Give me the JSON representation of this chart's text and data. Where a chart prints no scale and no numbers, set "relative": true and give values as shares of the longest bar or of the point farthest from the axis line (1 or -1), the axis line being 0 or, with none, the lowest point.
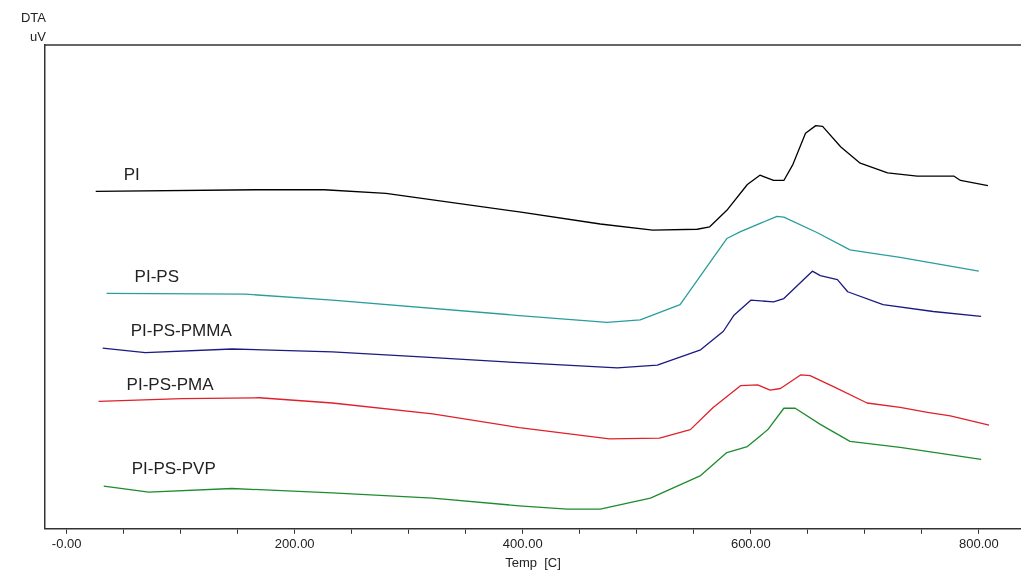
{
  "chart_data": {
    "type": "line",
    "relative": true,
    "annotations": [
      "DTA uV"
    ],
    "xlabel": "Temp  [C]",
    "xlim": [
      -19,
      837
    ],
    "xticks": [
      {
        "value": 0,
        "label": "-0.00"
      },
      {
        "value": 50,
        "label": null
      },
      {
        "value": 100,
        "label": null
      },
      {
        "value": 150,
        "label": null
      },
      {
        "value": 200,
        "label": "200.00"
      },
      {
        "value": 250,
        "label": null
      },
      {
        "value": 300,
        "label": null
      },
      {
        "value": 350,
        "label": null
      },
      {
        "value": 400,
        "label": "400.00"
      },
      {
        "value": 450,
        "label": null
      },
      {
        "value": 500,
        "label": null
      },
      {
        "value": 550,
        "label": null
      },
      {
        "value": 600,
        "label": "600.00"
      },
      {
        "value": 650,
        "label": null
      },
      {
        "value": 700,
        "label": null
      },
      {
        "value": 750,
        "label": null
      },
      {
        "value": 800,
        "label": "800.00"
      }
    ],
    "grid": false,
    "legend": false,
    "marker": "none",
    "line_style": "solid",
    "series": [
      {
        "name": "PI",
        "color": "#000000",
        "x": [
          25.5,
          166,
          226,
          280,
          397,
          468,
          514,
          553,
          564,
          579,
          597,
          608,
          620,
          629,
          637,
          648,
          657,
          663,
          679,
          696,
          720,
          746,
          778,
          784,
          808
        ],
        "values": [
          0.837,
          0.841,
          0.841,
          0.832,
          0.786,
          0.756,
          0.741,
          0.743,
          0.749,
          0.79,
          0.854,
          0.877,
          0.864,
          0.864,
          0.904,
          0.981,
          1.0,
          0.998,
          0.947,
          0.907,
          0.883,
          0.875,
          0.875,
          0.864,
          0.851
        ]
      },
      {
        "name": "PI-PS",
        "color": "#2a9d9d",
        "x": [
          35,
          157,
          233,
          397,
          474,
          503,
          538,
          556,
          579,
          591,
          623,
          629,
          658,
          687,
          731,
          800
        ],
        "values": [
          0.584,
          0.582,
          0.567,
          0.529,
          0.512,
          0.518,
          0.556,
          0.628,
          0.72,
          0.737,
          0.775,
          0.773,
          0.735,
          0.692,
          0.673,
          0.639
        ]
      },
      {
        "name": "PI-PS-PMMA",
        "color": "#1a1a80",
        "x": [
          31.6,
          69,
          145,
          233,
          307,
          397,
          483,
          518,
          556,
          576,
          585,
          600,
          620,
          629,
          654,
          661,
          676,
          685,
          716,
          760,
          802
        ],
        "values": [
          0.448,
          0.437,
          0.446,
          0.439,
          0.427,
          0.412,
          0.399,
          0.406,
          0.444,
          0.49,
          0.529,
          0.567,
          0.563,
          0.571,
          0.639,
          0.628,
          0.618,
          0.588,
          0.556,
          0.539,
          0.527
        ]
      },
      {
        "name": "PI-PS-PMA",
        "color": "#e0202a",
        "x": [
          28,
          101,
          169,
          233,
          321,
          397,
          476,
          520,
          547,
          567,
          591,
          606,
          617,
          626,
          644,
          652,
          673,
          702,
          731,
          755,
          775,
          809
        ],
        "values": [
          0.316,
          0.323,
          0.325,
          0.312,
          0.285,
          0.251,
          0.223,
          0.225,
          0.246,
          0.301,
          0.355,
          0.357,
          0.344,
          0.348,
          0.382,
          0.38,
          0.352,
          0.312,
          0.301,
          0.289,
          0.28,
          0.257
        ]
      },
      {
        "name": "PI-PS-PVP",
        "color": "#1e8c2e",
        "x": [
          32.5,
          72,
          145,
          233,
          321,
          397,
          439,
          468,
          512,
          556,
          579,
          597,
          615,
          629,
          639,
          661,
          687,
          731,
          802
        ],
        "values": [
          0.106,
          0.091,
          0.1,
          0.089,
          0.076,
          0.057,
          0.049,
          0.049,
          0.076,
          0.132,
          0.189,
          0.204,
          0.246,
          0.299,
          0.299,
          0.259,
          0.217,
          0.202,
          0.172
        ]
      }
    ]
  }
}
